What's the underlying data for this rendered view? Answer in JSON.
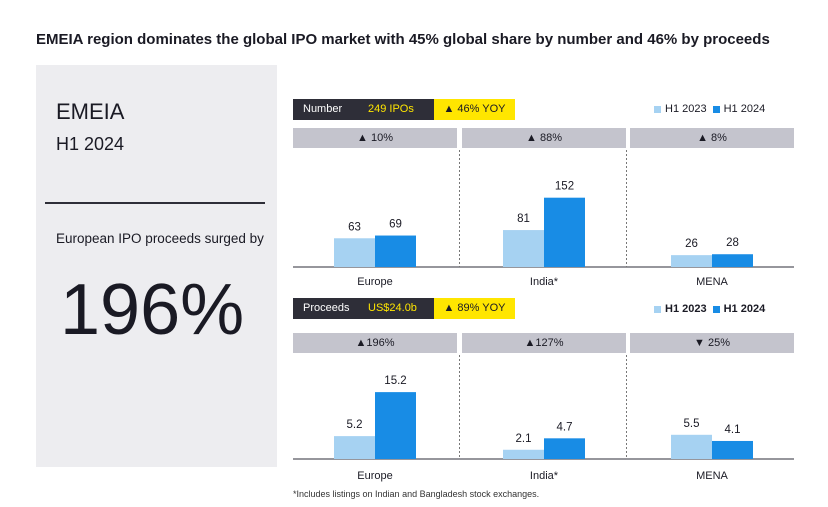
{
  "title": "EMEIA region dominates the global IPO market with 45% global share by number and 46% by proceeds",
  "left_panel": {
    "region": "EMEIA",
    "period": "H1 2024",
    "stat_text": "European IPO proceeds surged by",
    "stat_value": "196%"
  },
  "footnote": "*Includes listings on Indian and Bangladesh stock exchanges.",
  "colors": {
    "h1_2023": "#a6d2f2",
    "h1_2024": "#188ce5",
    "dark": "#2e2e38",
    "yellow": "#ffe600",
    "change_bg": "#c4c4cd"
  },
  "number_panel": {
    "label": "Number",
    "value": "249 IPOs",
    "yoy": "▲ 46% YOY",
    "legend": [
      "H1 2023",
      "H1 2024"
    ],
    "changes": [
      "▲ 10%",
      "▲ 88%",
      "▲ 8%"
    ]
  },
  "proceeds_panel": {
    "label": "Proceeds",
    "value": "US$24.0b",
    "yoy": "▲ 89% YOY",
    "legend": [
      "H1 2023",
      "H1 2024"
    ],
    "changes": [
      "▲196%",
      "▲127%",
      "▼ 25%"
    ]
  },
  "chart_data": [
    {
      "type": "bar",
      "title": "Number",
      "categories": [
        "Europe",
        "India*",
        "MENA"
      ],
      "series": [
        {
          "name": "H1 2023",
          "values": [
            63,
            81,
            26
          ]
        },
        {
          "name": "H1 2024",
          "values": [
            69,
            152,
            28
          ]
        }
      ],
      "value_labels": [
        [
          "63",
          "81",
          "26"
        ],
        [
          "69",
          "152",
          "28"
        ]
      ],
      "legend_position": "top-right"
    },
    {
      "type": "bar",
      "title": "Proceeds",
      "categories": [
        "Europe",
        "India*",
        "MENA"
      ],
      "series": [
        {
          "name": "H1 2023",
          "values": [
            5.2,
            2.1,
            5.5
          ]
        },
        {
          "name": "H1 2024",
          "values": [
            15.2,
            4.7,
            4.1
          ]
        }
      ],
      "value_labels": [
        [
          "5.2",
          "2.1",
          "5.5"
        ],
        [
          "15.2",
          "4.7",
          "4.1"
        ]
      ],
      "legend_position": "top-right"
    }
  ]
}
